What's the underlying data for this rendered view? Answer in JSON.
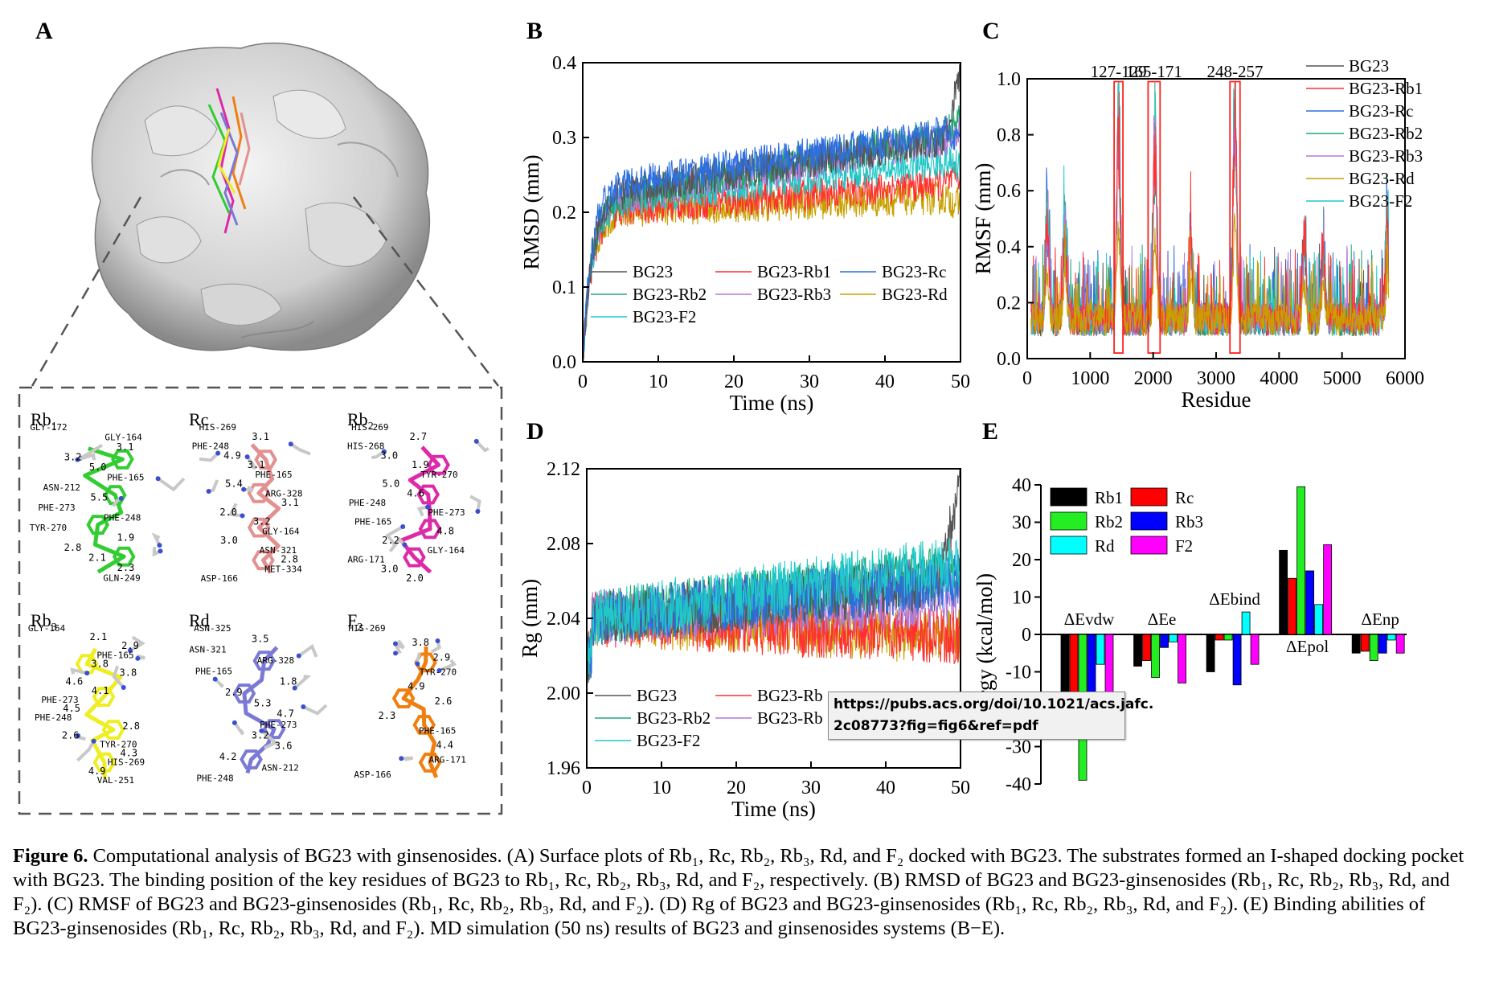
{
  "panels": {
    "A": "A",
    "B": "B",
    "C": "C",
    "D": "D",
    "E": "E"
  },
  "docking": {
    "ligands": [
      {
        "key": "rb1",
        "name": "Rb",
        "sub": "1",
        "color": "#33cc33",
        "labels": [
          "GLY-172",
          "GLY-164",
          "3.1",
          "3.2",
          "5.0",
          "PHE-165",
          "ASN-212",
          "5.5",
          "PHE-273",
          "PHE-248",
          "TYR-270",
          "1.9",
          "2.8",
          "2.1",
          "2.3",
          "GLN-249"
        ]
      },
      {
        "key": "rc",
        "name": "Rc",
        "sub": "",
        "color": "#e39090",
        "labels": [
          "HIS-269",
          "3.1",
          "PHE-248",
          "4.9",
          "3.1",
          "PHE-165",
          "5.4",
          "ARG-328",
          "3.1",
          "2.0",
          "3.2",
          "GLY-164",
          "3.0",
          "ASN-321",
          "2.8",
          "MET-334",
          "ASP-166"
        ]
      },
      {
        "key": "rb2",
        "name": "Rb",
        "sub": "2",
        "color": "#dd2aa8",
        "labels": [
          "HIS-269",
          "2.7",
          "HIS-268",
          "3.0",
          "1.9",
          "TYR-270",
          "5.0",
          "4.6",
          "PHE-248",
          "PHE-273",
          "PHE-165",
          "4.8",
          "2.2",
          "GLY-164",
          "ARG-171",
          "3.0",
          "2.0"
        ]
      },
      {
        "key": "rb3",
        "name": "Rb",
        "sub": "3",
        "color": "#eeee22",
        "labels": [
          "GLY-164",
          "2.1",
          "2.9",
          "PHE-165",
          "3.8",
          "3.8",
          "4.6",
          "4.1",
          "PHE-273",
          "4.5",
          "PHE-248",
          "2.8",
          "2.6",
          "TYR-270",
          "4.3",
          "HIS-269",
          "4.9",
          "VAL-251"
        ]
      },
      {
        "key": "rd",
        "name": "Rd",
        "sub": "",
        "color": "#7a7ad6",
        "labels": [
          "ASN-325",
          "3.5",
          "ASN-321",
          "ARG-328",
          "PHE-165",
          "1.8",
          "2.9",
          "5.3",
          "4.7",
          "PHE-273",
          "3.2",
          "3.6",
          "4.2",
          "ASN-212",
          "PHE-248"
        ]
      },
      {
        "key": "f2",
        "name": "F",
        "sub": "2",
        "color": "#f07f10",
        "labels": [
          "HIS-269",
          "3.8",
          "2.9",
          "TYR-270",
          "4.9",
          "2.6",
          "2.3",
          "PHE-165",
          "4.4",
          "ARG-171",
          "ASP-166"
        ]
      }
    ]
  },
  "colors": {
    "BG23": "#555555",
    "BG23-Rb1": "#ff3030",
    "BG23-Rc": "#2e6fe0",
    "BG23-Rb2": "#20a870",
    "BG23-Rb3": "#b07ad8",
    "BG23-Rd": "#c8a000",
    "BG23-F2": "#20c8c8"
  },
  "chart_data": [
    {
      "id": "B",
      "type": "line",
      "xlabel": "Time (ns)",
      "ylabel": "RMSD (mm)",
      "xlim": [
        0,
        50
      ],
      "ylim": [
        0,
        0.4
      ],
      "xticks": [
        "0",
        "10",
        "20",
        "30",
        "40",
        "50"
      ],
      "yticks": [
        "0.0",
        "0.1",
        "0.2",
        "0.3",
        "0.4"
      ],
      "legend_position": "bottom-left",
      "series": [
        {
          "name": "BG23",
          "start": 0.22,
          "end": 0.3,
          "final": 0.39
        },
        {
          "name": "BG23-Rb1",
          "start": 0.2,
          "end": 0.24,
          "final": 0.25
        },
        {
          "name": "BG23-Rc",
          "start": 0.23,
          "end": 0.31,
          "final": 0.3
        },
        {
          "name": "BG23-Rb2",
          "start": 0.21,
          "end": 0.31,
          "final": 0.33
        },
        {
          "name": "BG23-Rb3",
          "start": 0.21,
          "end": 0.3,
          "final": 0.31
        },
        {
          "name": "BG23-Rd",
          "start": 0.2,
          "end": 0.22,
          "final": 0.21
        },
        {
          "name": "BG23-F2",
          "start": 0.21,
          "end": 0.27,
          "final": 0.26
        }
      ]
    },
    {
      "id": "C",
      "type": "line",
      "xlabel": "Residue",
      "ylabel": "RMSF (mm)",
      "xlim": [
        0,
        6000
      ],
      "ylim": [
        0,
        1.0
      ],
      "xticks": [
        "0",
        "1000",
        "2000",
        "3000",
        "4000",
        "5000",
        "6000"
      ],
      "yticks": [
        "0.0",
        "0.2",
        "0.4",
        "0.6",
        "0.8",
        "1.0"
      ],
      "annotations": [
        "127-129",
        "165-171",
        "248-257"
      ],
      "highlight_ranges": [
        [
          1380,
          1520
        ],
        [
          1920,
          2110
        ],
        [
          3220,
          3380
        ]
      ],
      "legend_position": "top-right",
      "series": [
        "BG23",
        "BG23-Rb1",
        "BG23-Rc",
        "BG23-Rb2",
        "BG23-Rb3",
        "BG23-Rd",
        "BG23-F2"
      ]
    },
    {
      "id": "D",
      "type": "line",
      "xlabel": "Time (ns)",
      "ylabel": "Rg (mm)",
      "xlim": [
        0,
        50
      ],
      "ylim": [
        1.96,
        2.12
      ],
      "xticks": [
        "0",
        "10",
        "20",
        "30",
        "40",
        "50"
      ],
      "yticks": [
        "1.96",
        "2.00",
        "2.04",
        "2.08",
        "2.12"
      ],
      "legend_position": "bottom-left",
      "legend_shown": [
        "BG23",
        "BG23-Rb",
        "BG23-Rb2",
        "BG23-Rb",
        "BG23-F2"
      ],
      "series": [
        {
          "name": "BG23",
          "level": 2.06,
          "final": 2.11
        },
        {
          "name": "BG23-Rb1",
          "level": 2.03
        },
        {
          "name": "BG23-Rc",
          "level": 2.06
        },
        {
          "name": "BG23-Rb2",
          "level": 2.065
        },
        {
          "name": "BG23-Rb3",
          "level": 2.05
        },
        {
          "name": "BG23-Rd",
          "level": 2.03
        },
        {
          "name": "BG23-F2",
          "level": 2.07
        }
      ]
    },
    {
      "id": "E",
      "type": "bar",
      "ylabel": "Energy (kcal/mol)",
      "ylabel_visible": "nergy (kcal/mol)",
      "ylim": [
        -40,
        40
      ],
      "yticks": [
        "40",
        "30",
        "20",
        "10",
        "0",
        "-10",
        "-20",
        "-30",
        "-40"
      ],
      "categories": [
        "ΔEvdw",
        "ΔEe",
        "ΔEbind",
        "ΔEpol",
        "ΔEnp"
      ],
      "legend_position": "top-left",
      "series": [
        {
          "name": "Rb1",
          "color": "#000000",
          "values": [
            -28,
            -8.5,
            -10,
            22.5,
            -5
          ]
        },
        {
          "name": "Rc",
          "color": "#ff0000",
          "values": [
            -28,
            -7,
            -1.5,
            15,
            -4.5
          ]
        },
        {
          "name": "Rb2",
          "color": "#22ee22",
          "values": [
            -39,
            -11.5,
            -1.5,
            39.5,
            -7
          ]
        },
        {
          "name": "Rb3",
          "color": "#0000ff",
          "values": [
            -28,
            -3.5,
            -13.5,
            17,
            -5
          ]
        },
        {
          "name": "Rd",
          "color": "#00ffff",
          "values": [
            -8,
            -2,
            6,
            8,
            -1.5
          ]
        },
        {
          "name": "F2",
          "color": "#ff00ff",
          "values": [
            -28,
            -13,
            -8,
            24,
            -5
          ]
        }
      ]
    }
  ],
  "tooltip": {
    "line1": "https://pubs.acs.org/doi/10.1021/acs.jafc.",
    "line2": "2c08773?fig=fig6&ref=pdf"
  },
  "caption": {
    "label": "Figure 6.",
    "text": " Computational analysis of BG23 with ginsenosides. (A) Surface plots of Rb₁, Rc, Rb₂, Rb₃, Rd, and F₂ docked with BG23. The substrates formed an I-shaped docking pocket with BG23. The binding position of the key residues of BG23 to Rb₁, Rc, Rb₂, Rb₃, Rd, and F₂, respectively. (B) RMSD of BG23 and BG23-ginsenosides (Rb₁, Rc, Rb₂, Rb₃, Rd, and F₂). (C) RMSF of BG23 and BG23-ginsenosides (Rb₁, Rc, Rb₂, Rb₃, Rd, and F₂). (D) Rg of BG23 and BG23-ginsenosides (Rb₁, Rc, Rb₂, Rb₃, Rd, and F₂). (E) Binding abilities of BG23-ginsenosides (Rb₁, Rc, Rb₂, Rb₃, Rd, and F₂). MD simulation (50 ns) results of BG23 and ginsenosides systems (B−E)."
  }
}
